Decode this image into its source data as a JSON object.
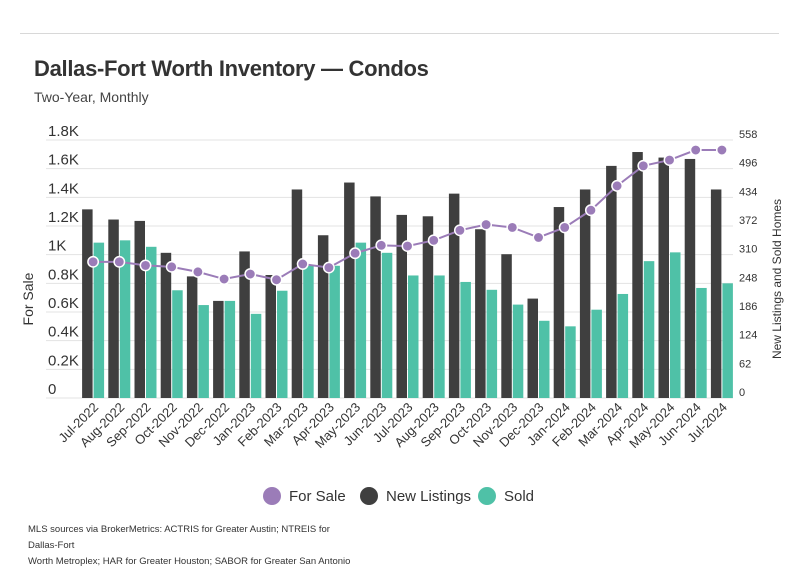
{
  "chart_data": {
    "type": "bar",
    "title": "Dallas-Fort Worth Inventory — Condos",
    "subtitle": "Two-Year, Monthly",
    "ylabel": "For Sale",
    "y2label": "New Listings and Sold Homes",
    "categories": [
      "Jul-2022",
      "Aug-2022",
      "Sep-2022",
      "Oct-2022",
      "Nov-2022",
      "Dec-2022",
      "Jan-2023",
      "Feb-2023",
      "Mar-2023",
      "Apr-2023",
      "May-2023",
      "Jun-2023",
      "Jul-2023",
      "Aug-2023",
      "Sep-2023",
      "Oct-2023",
      "Nov-2023",
      "Dec-2023",
      "Jan-2024",
      "Feb-2024",
      "Mar-2024",
      "Apr-2024",
      "May-2024",
      "Jun-2024",
      "Jul-2024"
    ],
    "yticks": [
      "0",
      "0.2K",
      "0.4K",
      "0.6K",
      "0.8K",
      "1K",
      "1.2K",
      "1.4K",
      "1.6K",
      "1.8K"
    ],
    "y2ticks": [
      "0",
      "62",
      "124",
      "186",
      "248",
      "310",
      "372",
      "434",
      "496",
      "558"
    ],
    "ylim": [
      0,
      1800
    ],
    "y2lim": [
      0,
      558
    ],
    "series": [
      {
        "name": "For Sale",
        "kind": "line",
        "axis": "left",
        "color": "#9b7cb8",
        "values": [
          950,
          950,
          925,
          915,
          880,
          830,
          865,
          825,
          935,
          910,
          1010,
          1065,
          1060,
          1100,
          1170,
          1210,
          1190,
          1120,
          1190,
          1310,
          1480,
          1620,
          1660,
          1730,
          1730
        ]
      },
      {
        "name": "New Listings",
        "kind": "bar",
        "axis": "right",
        "color": "#3f3f3f",
        "values": [
          408,
          386,
          383,
          314,
          263,
          210,
          317,
          266,
          451,
          352,
          466,
          436,
          396,
          393,
          442,
          365,
          311,
          215,
          413,
          451,
          502,
          532,
          520,
          517,
          451
        ]
      },
      {
        "name": "Sold",
        "kind": "bar",
        "axis": "right",
        "color": "#4fc1a7",
        "values": [
          336,
          341,
          327,
          233,
          201,
          210,
          182,
          232,
          286,
          286,
          336,
          314,
          265,
          265,
          251,
          234,
          202,
          167,
          155,
          191,
          225,
          296,
          315,
          238,
          248
        ]
      }
    ],
    "legend": {
      "position": "bottom",
      "items": [
        "For Sale",
        "New Listings",
        "Sold"
      ]
    },
    "grid": true
  },
  "footer": {
    "source_line1": "MLS sources via BrokerMetrics: ACTRIS for Greater Austin; NTREIS for Dallas-Fort",
    "source_line2": "Worth Metroplex; HAR for Greater Houston; SABOR for Greater San Antonio"
  }
}
